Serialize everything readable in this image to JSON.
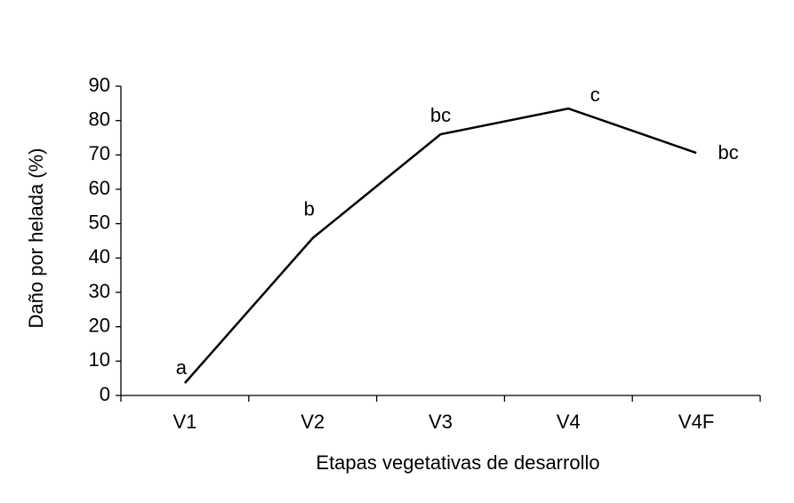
{
  "chart_data": {
    "type": "line",
    "x_label": "Etapas vegetativas de desarrollo",
    "y_label": "Daño por helada (%)",
    "categories": [
      "V1",
      "V2",
      "V3",
      "V4",
      "V4F"
    ],
    "values": [
      3.6,
      45.8,
      76,
      83.5,
      70.6
    ],
    "annotations": [
      "a",
      "b",
      "bc",
      "c",
      "bc"
    ],
    "color": "#000000",
    "ylim": [
      0,
      90
    ],
    "yticks": [
      0,
      10,
      20,
      30,
      40,
      50,
      60,
      70,
      80,
      90
    ],
    "grid": false
  }
}
